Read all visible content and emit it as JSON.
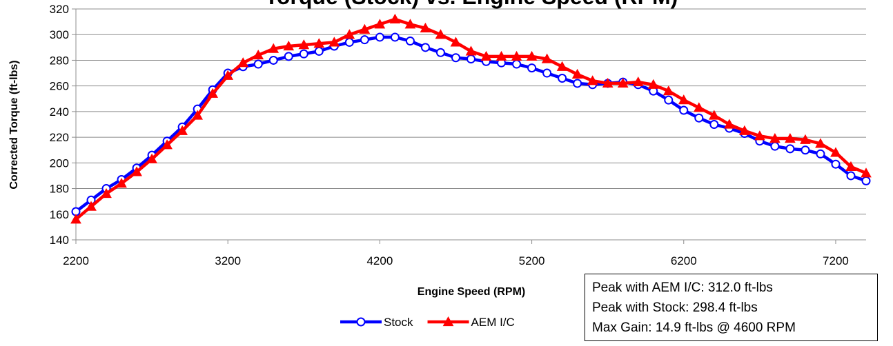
{
  "chart_data": {
    "type": "line",
    "title": "Torque (Stock) vs. Engine Speed (RPM)",
    "xlabel": "Engine Speed (RPM)",
    "ylabel": "Corrected Torque (ft-lbs)",
    "xlim": [
      2200,
      7400
    ],
    "ylim": [
      140,
      320
    ],
    "xticks": [
      2200,
      3200,
      4200,
      5200,
      6200,
      7200
    ],
    "yticks": [
      140,
      160,
      180,
      200,
      220,
      240,
      260,
      280,
      300,
      320
    ],
    "grid": "horizontal",
    "legend": "bottom-center",
    "x": [
      2200,
      2300,
      2400,
      2500,
      2600,
      2700,
      2800,
      2900,
      3000,
      3100,
      3200,
      3300,
      3400,
      3500,
      3600,
      3700,
      3800,
      3900,
      4000,
      4100,
      4200,
      4300,
      4400,
      4500,
      4600,
      4700,
      4800,
      4900,
      5000,
      5100,
      5200,
      5300,
      5400,
      5500,
      5600,
      5700,
      5800,
      5900,
      6000,
      6100,
      6200,
      6300,
      6400,
      6500,
      6600,
      6700,
      6800,
      6900,
      7000,
      7100,
      7200,
      7300,
      7400
    ],
    "series": [
      {
        "name": "Stock",
        "color": "#0000ff",
        "marker": "circle-open",
        "values": [
          162,
          171,
          180,
          187,
          196,
          206,
          217,
          228,
          242,
          257,
          270,
          275,
          277,
          280,
          283,
          285,
          287,
          291,
          294,
          296,
          298,
          298,
          295,
          290,
          286,
          282,
          281,
          279,
          278,
          277,
          274,
          270,
          266,
          262,
          261,
          262,
          263,
          261,
          256,
          249,
          241,
          235,
          230,
          227,
          223,
          217,
          213,
          211,
          210,
          207,
          199,
          190,
          186
        ]
      },
      {
        "name": "AEM I/C",
        "color": "#ff0000",
        "marker": "triangle-filled",
        "values": [
          156,
          166,
          176,
          184,
          193,
          203,
          214,
          225,
          237,
          254,
          268,
          278,
          284,
          289,
          291,
          292,
          293,
          294,
          300,
          304,
          308,
          312,
          308,
          305,
          300,
          294,
          287,
          283,
          283,
          283,
          283,
          281,
          275,
          269,
          264,
          262,
          262,
          263,
          261,
          256,
          249,
          243,
          237,
          230,
          225,
          221,
          219,
          219,
          218,
          215,
          208,
          197,
          192
        ]
      }
    ]
  },
  "info_box": {
    "lines": [
      "Peak with AEM I/C:  312.0 ft-lbs",
      "Peak with Stock:  298.4 ft-lbs",
      "Max Gain: 14.9 ft-lbs @ 4600 RPM"
    ]
  }
}
